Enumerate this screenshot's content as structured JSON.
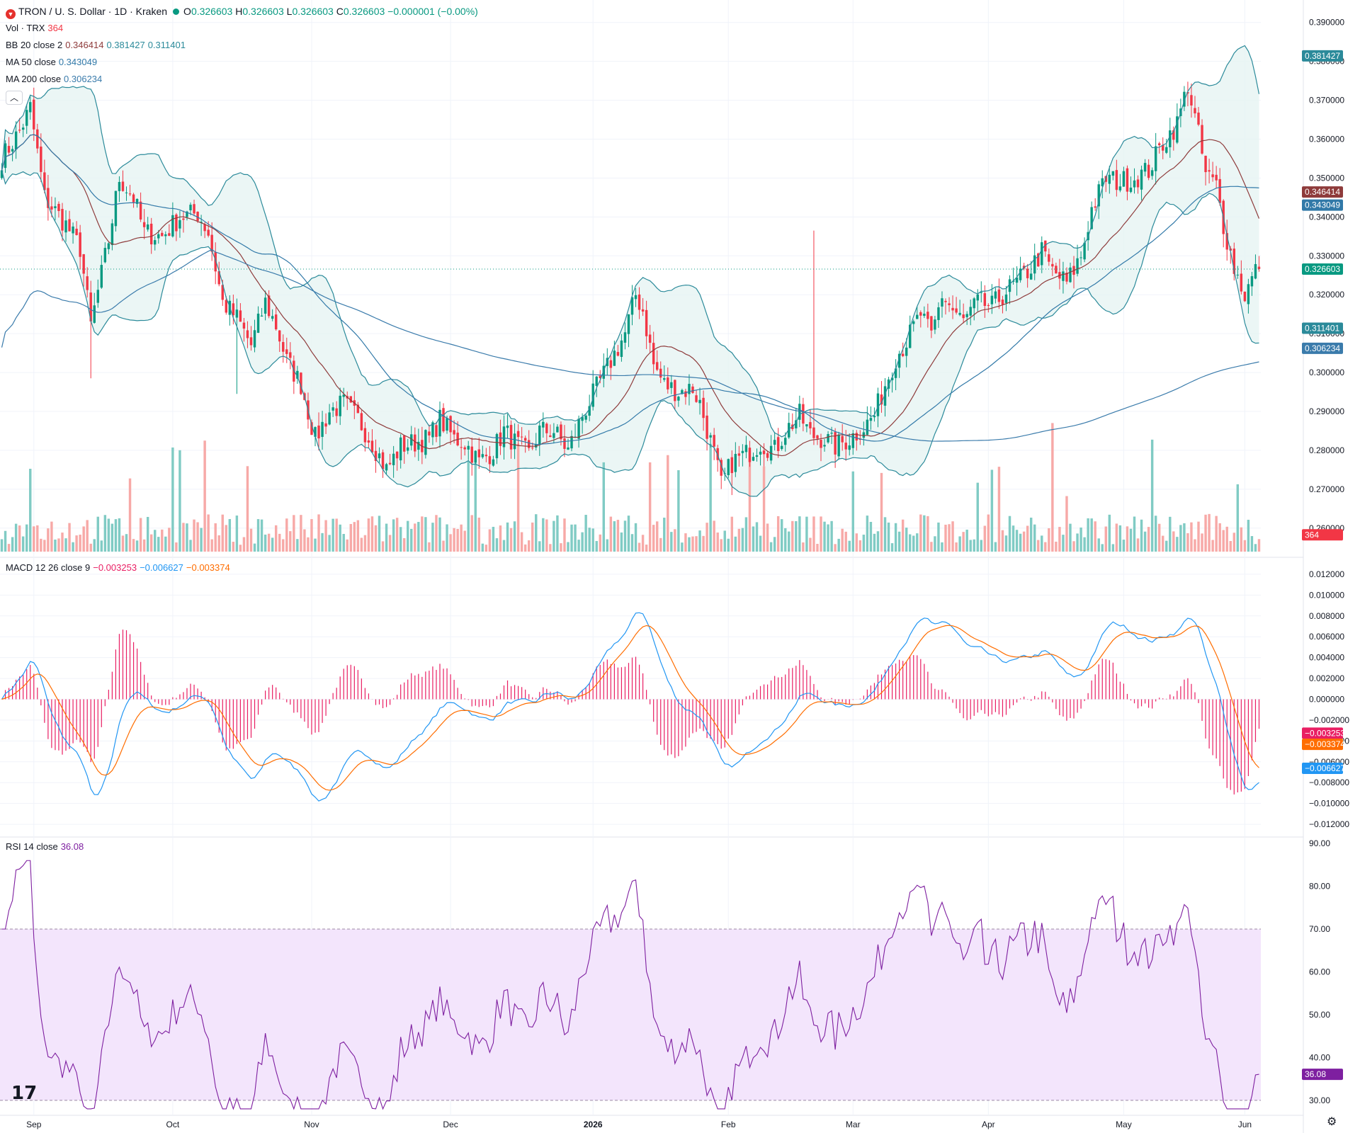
{
  "header": {
    "symbol": "TRON / U. S. Dollar · 1D · Kraken",
    "o_label": "O",
    "o_value": "0.326603",
    "h_label": "H",
    "h_value": "0.326603",
    "l_label": "L",
    "l_value": "0.326603",
    "c_label": "C",
    "c_value": "0.326603",
    "change": "−0.000001 (−0.00%)"
  },
  "legends": {
    "vol": {
      "label": "Vol · TRX",
      "value": "364"
    },
    "bb": {
      "label": "BB 20 close 2",
      "v1": "0.346414",
      "v2": "0.381427",
      "v3": "0.311401"
    },
    "ma50": {
      "label": "MA 50 close",
      "value": "0.343049"
    },
    "ma200": {
      "label": "MA 200 close",
      "value": "0.306234"
    },
    "macd": {
      "label": "MACD 12 26 close 9",
      "v1": "−0.003253",
      "v2": "−0.006627",
      "v3": "−0.003374"
    },
    "rsi": {
      "label": "RSI 14 close",
      "value": "36.08"
    }
  },
  "colors": {
    "up": "#089981",
    "down": "#f23645",
    "bb": "#2b8a9a",
    "bb_fill": "#e6f4f3",
    "ma50": "#3179a8",
    "ma200": "#3a7bab",
    "basis": "#8e3b3b",
    "macd": "#2196f3",
    "signal": "#ff6d00",
    "hist": "#e91e63",
    "rsi": "#7e1fa0",
    "rsi_band": "#f3e5fc"
  },
  "icons": {
    "collapse": "chevron-up-icon",
    "logo": "tradingview-logo",
    "settings": "gear-icon"
  },
  "chart_data": [
    {
      "type": "candlestick",
      "title": "TRON / U. S. Dollar · 1D · Kraken",
      "ylim": [
        0.2565,
        0.3925
      ],
      "price_ticks": [
        "0.390000",
        "0.380000",
        "0.370000",
        "0.360000",
        "0.350000",
        "0.340000",
        "0.330000",
        "0.320000",
        "0.310000",
        "0.300000",
        "0.290000",
        "0.280000",
        "0.270000",
        "0.260000"
      ],
      "time_ticks": [
        "Sep",
        "Oct",
        "Nov",
        "Dec",
        "2026",
        "Feb",
        "Mar",
        "Apr",
        "May",
        "Jun"
      ],
      "price_anchors": [
        [
          0,
          0.355
        ],
        [
          5,
          0.362
        ],
        [
          8,
          0.368
        ],
        [
          12,
          0.345
        ],
        [
          18,
          0.338
        ],
        [
          22,
          0.332
        ],
        [
          25,
          0.312
        ],
        [
          30,
          0.334
        ],
        [
          33,
          0.35
        ],
        [
          37,
          0.345
        ],
        [
          40,
          0.336
        ],
        [
          45,
          0.335
        ],
        [
          50,
          0.34
        ],
        [
          55,
          0.341
        ],
        [
          58,
          0.336
        ],
        [
          62,
          0.318
        ],
        [
          66,
          0.314
        ],
        [
          70,
          0.307
        ],
        [
          74,
          0.318
        ],
        [
          77,
          0.312
        ],
        [
          80,
          0.303
        ],
        [
          84,
          0.297
        ],
        [
          88,
          0.283
        ],
        [
          92,
          0.29
        ],
        [
          96,
          0.292
        ],
        [
          100,
          0.288
        ],
        [
          104,
          0.282
        ],
        [
          108,
          0.275
        ],
        [
          112,
          0.281
        ],
        [
          116,
          0.282
        ],
        [
          120,
          0.283
        ],
        [
          123,
          0.288
        ],
        [
          127,
          0.283
        ],
        [
          130,
          0.282
        ],
        [
          134,
          0.277
        ],
        [
          138,
          0.28
        ],
        [
          141,
          0.285
        ],
        [
          144,
          0.282
        ],
        [
          148,
          0.279
        ],
        [
          151,
          0.285
        ],
        [
          155,
          0.285
        ],
        [
          159,
          0.28
        ],
        [
          163,
          0.289
        ],
        [
          167,
          0.296
        ],
        [
          171,
          0.303
        ],
        [
          175,
          0.31
        ],
        [
          178,
          0.32
        ],
        [
          180,
          0.316
        ],
        [
          183,
          0.302
        ],
        [
          186,
          0.297
        ],
        [
          190,
          0.295
        ],
        [
          194,
          0.296
        ],
        [
          196,
          0.292
        ],
        [
          200,
          0.279
        ],
        [
          202,
          0.271
        ],
        [
          205,
          0.277
        ],
        [
          209,
          0.279
        ],
        [
          213,
          0.282
        ],
        [
          217,
          0.28
        ],
        [
          220,
          0.285
        ],
        [
          224,
          0.289
        ],
        [
          227,
          0.284
        ],
        [
          231,
          0.283
        ],
        [
          234,
          0.281
        ],
        [
          238,
          0.283
        ],
        [
          242,
          0.286
        ],
        [
          245,
          0.289
        ],
        [
          248,
          0.297
        ],
        [
          251,
          0.304
        ],
        [
          254,
          0.308
        ],
        [
          258,
          0.315
        ],
        [
          261,
          0.309
        ],
        [
          264,
          0.32
        ],
        [
          267,
          0.316
        ],
        [
          270,
          0.313
        ],
        [
          274,
          0.318
        ],
        [
          278,
          0.317
        ],
        [
          282,
          0.321
        ],
        [
          285,
          0.323
        ],
        [
          289,
          0.327
        ],
        [
          292,
          0.331
        ],
        [
          295,
          0.326
        ],
        [
          299,
          0.323
        ],
        [
          303,
          0.33
        ],
        [
          306,
          0.342
        ],
        [
          310,
          0.35
        ],
        [
          314,
          0.349
        ],
        [
          318,
          0.35
        ],
        [
          322,
          0.352
        ],
        [
          326,
          0.359
        ],
        [
          330,
          0.364
        ],
        [
          333,
          0.374
        ],
        [
          336,
          0.361
        ],
        [
          338,
          0.351
        ],
        [
          341,
          0.348
        ],
        [
          343,
          0.338
        ],
        [
          346,
          0.327
        ],
        [
          349,
          0.32
        ],
        [
          352,
          0.326
        ],
        [
          353,
          0.3266
        ]
      ],
      "vol_ylim": [
        0,
        3400
      ],
      "vol_ticks_none": true,
      "last_price": "0.326603",
      "bb_upper_last": "0.381427",
      "bb_basis_last": "0.346414",
      "bb_lower_last": "0.311401",
      "ma50_last": "0.343049",
      "ma200_last": "0.306234",
      "vol_last": "364"
    },
    {
      "type": "line",
      "title": "MACD 12 26 close 9",
      "ylim": [
        -0.0124,
        0.0124
      ],
      "ticks": [
        "0.012000",
        "0.010000",
        "0.008000",
        "0.006000",
        "0.004000",
        "0.002000",
        "0.000000",
        "−0.002000",
        "−0.004000",
        "−0.006000",
        "−0.008000",
        "−0.010000",
        "−0.012000"
      ],
      "series": [
        {
          "name": "MACD",
          "last": "−0.006627"
        },
        {
          "name": "Signal",
          "last": "−0.003374"
        },
        {
          "name": "Histogram",
          "last": "−0.003253"
        }
      ]
    },
    {
      "type": "line",
      "title": "RSI 14 close",
      "ylim": [
        26.5,
        91.5
      ],
      "ticks": [
        "90.00",
        "80.00",
        "70.00",
        "60.00",
        "50.00",
        "40.00",
        "30.00"
      ],
      "band": [
        30,
        70
      ],
      "series": [
        {
          "name": "RSI",
          "last": "36.08"
        }
      ]
    }
  ]
}
